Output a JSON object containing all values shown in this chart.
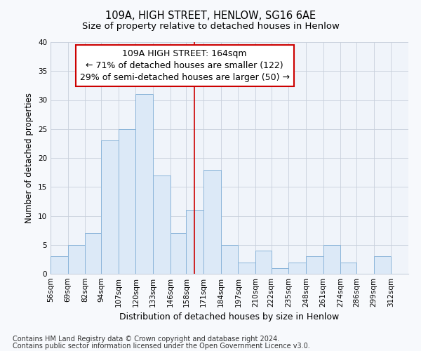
{
  "title": "109A, HIGH STREET, HENLOW, SG16 6AE",
  "subtitle": "Size of property relative to detached houses in Henlow",
  "xlabel": "Distribution of detached houses by size in Henlow",
  "ylabel": "Number of detached properties",
  "bin_labels": [
    "56sqm",
    "69sqm",
    "82sqm",
    "94sqm",
    "107sqm",
    "120sqm",
    "133sqm",
    "146sqm",
    "158sqm",
    "171sqm",
    "184sqm",
    "197sqm",
    "210sqm",
    "222sqm",
    "235sqm",
    "248sqm",
    "261sqm",
    "274sqm",
    "286sqm",
    "299sqm",
    "312sqm"
  ],
  "bin_edges": [
    56,
    69,
    82,
    94,
    107,
    120,
    133,
    146,
    158,
    171,
    184,
    197,
    210,
    222,
    235,
    248,
    261,
    274,
    286,
    299,
    312
  ],
  "bar_heights": [
    3,
    5,
    7,
    23,
    25,
    31,
    17,
    7,
    11,
    18,
    5,
    2,
    4,
    1,
    2,
    3,
    5,
    2,
    0,
    3,
    0
  ],
  "bar_color": "#dce9f7",
  "bar_edgecolor": "#8ab4d9",
  "property_line_x": 164,
  "property_line_color": "#cc0000",
  "annotation_line1": "109A HIGH STREET: 164sqm",
  "annotation_line2": "← 71% of detached houses are smaller (122)",
  "annotation_line3": "29% of semi-detached houses are larger (50) →",
  "annotation_box_color": "#ffffff",
  "annotation_box_edgecolor": "#cc0000",
  "ylim": [
    0,
    40
  ],
  "yticks": [
    0,
    5,
    10,
    15,
    20,
    25,
    30,
    35,
    40
  ],
  "footnote1": "Contains HM Land Registry data © Crown copyright and database right 2024.",
  "footnote2": "Contains public sector information licensed under the Open Government Licence v3.0.",
  "bg_color": "#f7f9fc",
  "plot_bg_color": "#f0f4fa",
  "grid_color": "#c8d0dc",
  "title_fontsize": 10.5,
  "subtitle_fontsize": 9.5,
  "xlabel_fontsize": 9,
  "ylabel_fontsize": 8.5,
  "tick_fontsize": 7.5,
  "annotation_fontsize": 9,
  "footnote_fontsize": 7
}
